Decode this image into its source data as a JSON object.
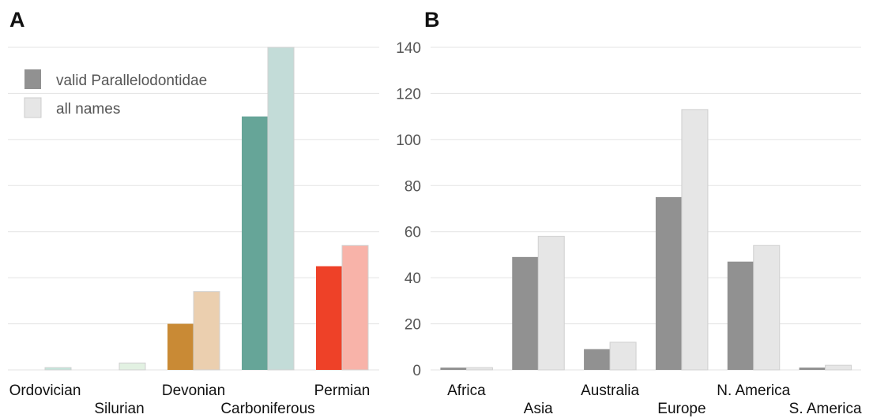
{
  "chart_data": [
    {
      "panel": "A",
      "type": "bar",
      "categories": [
        "Ordovician",
        "Silurian",
        "Devonian",
        "Carboniferous",
        "Permian"
      ],
      "series": [
        {
          "name": "valid Parallelodontidae",
          "values": [
            0,
            0,
            20,
            110,
            45
          ],
          "colors": [
            "#9fd4c2",
            "#d9ecd9",
            "#c98a35",
            "#66a598",
            "#ee4128"
          ]
        },
        {
          "name": "all names",
          "values": [
            1,
            3,
            34,
            140,
            54
          ],
          "colors": [
            "#c4e6dc",
            "#e2f1e2",
            "#ebcfaf",
            "#c3dcd8",
            "#f8b3a9"
          ]
        }
      ],
      "ylim": [
        0,
        140
      ],
      "legend": "top-left",
      "grid": true
    },
    {
      "panel": "B",
      "type": "bar",
      "categories": [
        "Africa",
        "Asia",
        "Australia",
        "Europe",
        "N. America",
        "S. America"
      ],
      "series": [
        {
          "name": "valid Parallelodontidae",
          "values": [
            1,
            49,
            9,
            75,
            47,
            1
          ],
          "color": "#919191"
        },
        {
          "name": "all names",
          "values": [
            1,
            58,
            12,
            113,
            54,
            2
          ],
          "color": "#e6e6e6"
        }
      ],
      "yticks": [
        0,
        20,
        40,
        60,
        80,
        100,
        120,
        140
      ],
      "ylim": [
        0,
        140
      ],
      "grid": true
    }
  ],
  "legend": {
    "items": [
      {
        "label": "valid Parallelodontidae",
        "color": "#919191"
      },
      {
        "label": "all names",
        "color": "#e6e6e6"
      }
    ]
  }
}
